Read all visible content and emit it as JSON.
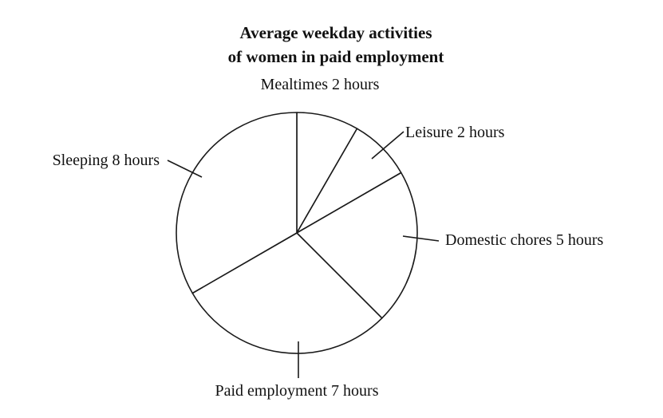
{
  "chart_data": {
    "type": "pie",
    "title": "Average weekday activities",
    "subtitle": "of women in paid employment",
    "unit": "hours",
    "slices": [
      {
        "name": "Mealtimes",
        "value": 2,
        "label": "Mealtimes 2 hours"
      },
      {
        "name": "Leisure",
        "value": 2,
        "label": "Leisure 2 hours"
      },
      {
        "name": "Domestic chores",
        "value": 5,
        "label": "Domestic chores 5 hours"
      },
      {
        "name": "Paid employment",
        "value": 7,
        "label": "Paid employment 7 hours"
      },
      {
        "name": "Sleeping",
        "value": 8,
        "label": "Sleeping 8 hours"
      }
    ],
    "colors": {
      "stroke": "#1a1a1a",
      "fill": "#ffffff",
      "text": "#111111"
    },
    "legend": "none"
  }
}
